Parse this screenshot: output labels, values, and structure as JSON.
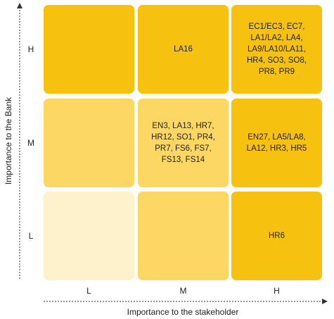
{
  "y_axis": {
    "label": "Importance to the Bank",
    "ticks": [
      "H",
      "M",
      "L"
    ]
  },
  "x_axis": {
    "label": "Importance to the stakeholder",
    "ticks": [
      "L",
      "M",
      "H"
    ]
  },
  "cells": {
    "h_l": "",
    "h_m": "LA16",
    "h_h": "EC1/EC3, EC7,\nLA1/LA2, LA4,\nLA9/LA10/LA11,\nHR4, SO3, SO8,\nPR8, PR9",
    "m_l": "",
    "m_m": "EN3, LA13, HR7,\nHR12, SO1, PR4,\nPR7, FS6, FS7,\nFS13, FS14",
    "m_h": "EN27, LA5/LA8,\nLA12, HR3, HR5",
    "l_l": "",
    "l_m": "",
    "l_h": "HR6"
  },
  "colors": {
    "strong": "#f7c10f",
    "medium": "#fcd763",
    "light": "#fef2cc",
    "axis": "#333333"
  }
}
